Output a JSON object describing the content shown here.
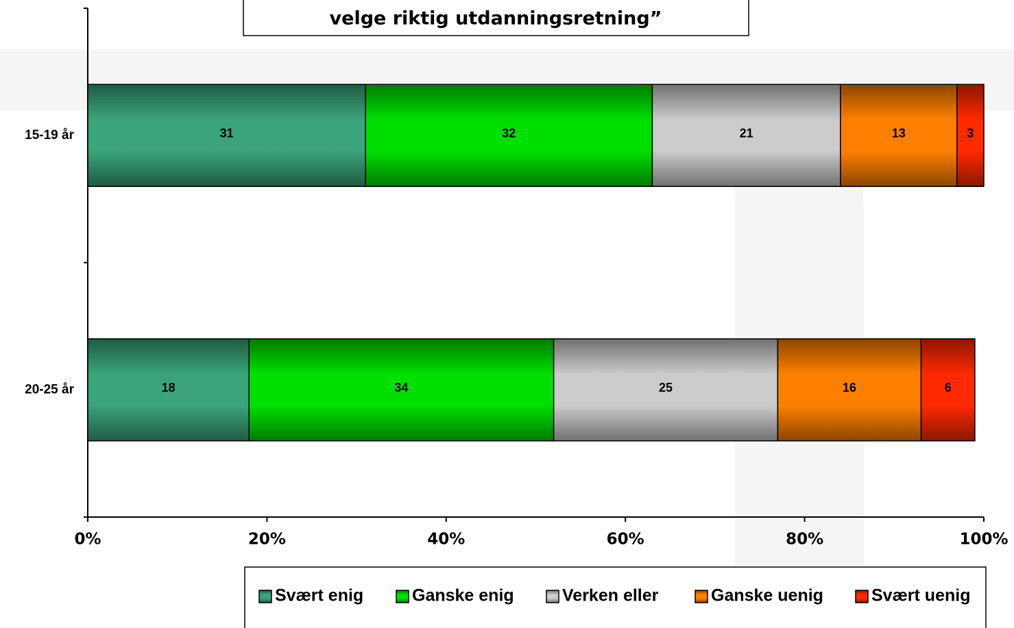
{
  "chart_data": {
    "type": "bar",
    "orientation": "horizontal",
    "stacked": true,
    "title": "velge riktig utdanningsretning”",
    "categories": [
      "15-19 år",
      "20-25 år"
    ],
    "series": [
      {
        "name": "Svært enig",
        "color": "#3aa57a",
        "values": [
          31,
          18
        ]
      },
      {
        "name": "Ganske enig",
        "color": "#00e000",
        "values": [
          32,
          34
        ]
      },
      {
        "name": "Verken eller",
        "color": "#cccccc",
        "values": [
          21,
          25
        ]
      },
      {
        "name": "Ganske uenig",
        "color": "#ff8000",
        "values": [
          13,
          16
        ]
      },
      {
        "name": "Svært uenig",
        "color": "#ff2a00",
        "values": [
          3,
          6
        ]
      }
    ],
    "xlim": [
      0,
      100
    ],
    "xticks": [
      {
        "value": 0,
        "label": "0%"
      },
      {
        "value": 20,
        "label": "20%"
      },
      {
        "value": 40,
        "label": "40%"
      },
      {
        "value": 60,
        "label": "60%"
      },
      {
        "value": 80,
        "label": "80%"
      },
      {
        "value": 100,
        "label": "100%"
      }
    ],
    "legend": "bottom"
  }
}
